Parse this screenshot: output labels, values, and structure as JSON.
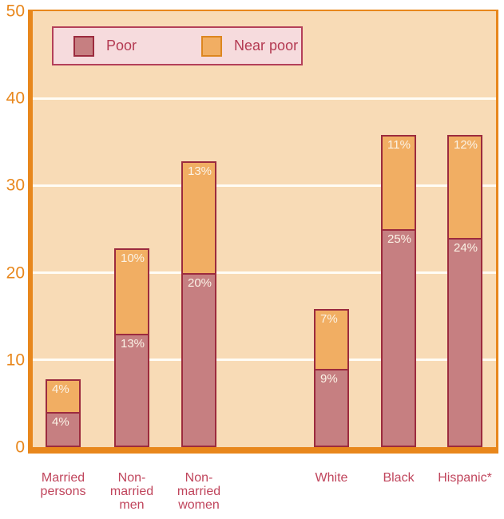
{
  "chart_data": {
    "type": "bar",
    "stacked": true,
    "title": "",
    "xlabel": "",
    "ylabel": "",
    "categories": [
      "Married persons",
      "Non-married men",
      "Non-married women",
      "White",
      "Black",
      "Hispanic*"
    ],
    "category_label_lines": [
      [
        "Married",
        "persons"
      ],
      [
        "Non-",
        "married",
        "men"
      ],
      [
        "Non-",
        "married",
        "women"
      ],
      [
        "White"
      ],
      [
        "Black"
      ],
      [
        "Hispanic*"
      ]
    ],
    "series": [
      {
        "name": "Poor",
        "values": [
          4,
          13,
          20,
          9,
          25,
          24
        ],
        "color": "#C67F81",
        "border_color": "#9C2B3E",
        "legend_swatch_border": "#9C2B3E"
      },
      {
        "name": "Near poor",
        "values": [
          4,
          10,
          13,
          7,
          11,
          12
        ],
        "color": "#F1AE63",
        "border_color": "#9C2B3E",
        "legend_swatch_border": "#DD861F"
      }
    ],
    "value_label_suffix": "%",
    "ylim": [
      0,
      50
    ],
    "yticks": [
      0,
      10,
      20,
      30,
      40,
      50
    ],
    "grid": {
      "horizontal": true,
      "at": [
        10,
        20,
        30,
        40
      ],
      "color": "#FFFCF5"
    },
    "legend_position": "top-left inside plot",
    "groups": [
      [
        0,
        1,
        2
      ],
      [
        3,
        4,
        5
      ]
    ],
    "colors": {
      "plot_background": "#F8DBB6",
      "axis": "#E8871C",
      "tick_label": "#E8871C",
      "category_label": "#C0455C",
      "value_label": "#FBF3E6",
      "legend_background": "#F6DBDD",
      "legend_border": "#B4405A",
      "legend_text": "#B43A52"
    }
  }
}
